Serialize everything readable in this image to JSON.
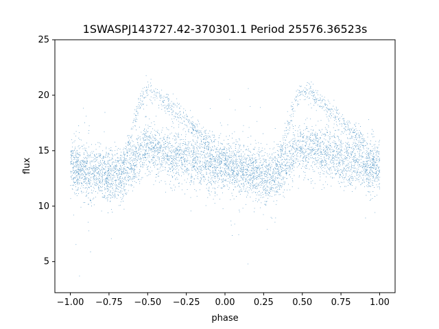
{
  "chart_data": {
    "type": "scatter",
    "title": "1SWASPJ143727.42-370301.1 Period 25576.36523s",
    "xlabel": "phase",
    "ylabel": "flux",
    "xlim": [
      -1.1,
      1.1
    ],
    "ylim": [
      2.2,
      25
    ],
    "xticks": [
      -1.0,
      -0.75,
      -0.5,
      -0.25,
      0.0,
      0.25,
      0.5,
      0.75,
      1.0
    ],
    "xtick_labels": [
      "−1.00",
      "−0.75",
      "−0.50",
      "−0.25",
      "0.00",
      "0.25",
      "0.50",
      "0.75",
      "1.00"
    ],
    "yticks": [
      5,
      10,
      15,
      20,
      25
    ],
    "ytick_labels": [
      "5",
      "10",
      "15",
      "20",
      "25"
    ],
    "grid": false,
    "legend": "none",
    "point_color": "#1f77b4",
    "x_range_of_points": [
      -1.0,
      1.0
    ],
    "series": [
      {
        "color": "#1f77b4",
        "description_of_distribution": "phase-folded light curve repeated twice",
        "profile": {
          "phase": [
            0.0,
            0.1,
            0.2,
            0.3,
            0.33,
            0.4,
            0.45,
            0.5,
            0.55,
            0.6,
            0.7,
            0.8,
            0.9,
            1.0
          ],
          "median_flux": [
            13.6,
            13.2,
            12.9,
            12.8,
            12.9,
            13.8,
            14.8,
            15.2,
            15.0,
            14.8,
            14.5,
            14.1,
            13.9,
            13.6
          ],
          "upper_branch_flux": [
            null,
            null,
            null,
            null,
            13.5,
            17.0,
            19.5,
            20.3,
            20.1,
            19.5,
            18.3,
            17.0,
            15.8,
            null
          ]
        }
      }
    ]
  }
}
